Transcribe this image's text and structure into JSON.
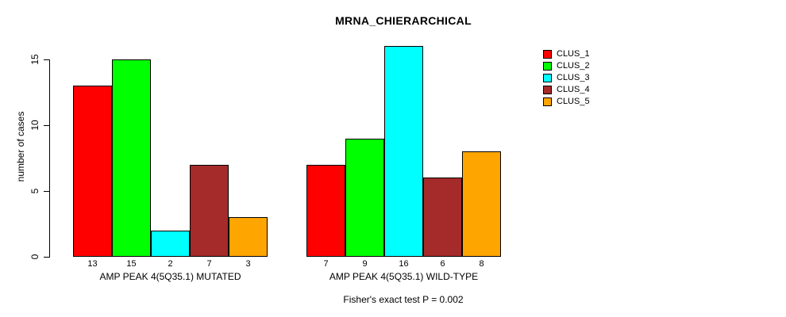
{
  "title": "MRNA_CHIERARCHICAL",
  "caption": "Fisher's exact test P = 0.002",
  "chart_data": {
    "type": "bar",
    "grouped_beside": true,
    "title": "MRNA_CHIERARCHICAL",
    "xlabel": "",
    "ylabel": "number of cases",
    "categories": [
      "AMP PEAK 4(5Q35.1) MUTATED",
      "AMP PEAK 4(5Q35.1) WILD-TYPE"
    ],
    "series": [
      {
        "name": "CLUS_1",
        "color": "#FF0000",
        "values": [
          13,
          7
        ]
      },
      {
        "name": "CLUS_2",
        "color": "#00FF00",
        "values": [
          15,
          9
        ]
      },
      {
        "name": "CLUS_3",
        "color": "#00FFFF",
        "values": [
          2,
          16
        ]
      },
      {
        "name": "CLUS_4",
        "color": "#A52A2A",
        "values": [
          7,
          6
        ]
      },
      {
        "name": "CLUS_5",
        "color": "#FFA500",
        "values": [
          3,
          8
        ]
      }
    ],
    "bar_value_labels_shown": true,
    "yticks": [
      0,
      5,
      10,
      15
    ],
    "ylim": [
      0,
      16.6
    ],
    "grid": false,
    "legend_position": "right",
    "axis_color": "#000000",
    "bar_border_color": "#000000",
    "background_color": "#FFFFFF"
  }
}
